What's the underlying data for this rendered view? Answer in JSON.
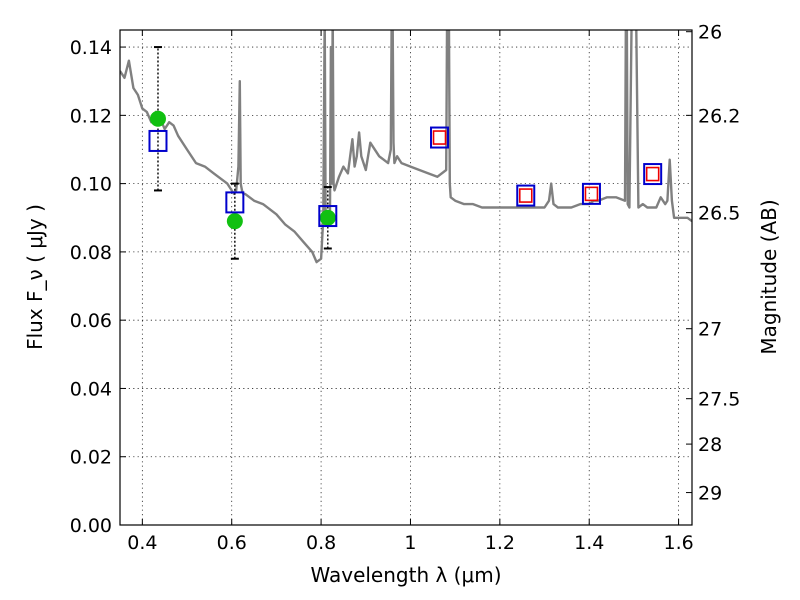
{
  "chart_data": {
    "type": "scatter",
    "title": "",
    "xlabel": "Wavelength  λ (μm)",
    "ylabel": "Flux  F_ν  ( μJy )",
    "y2label": "Magnitude (AB)",
    "xlim": [
      0.35,
      1.63
    ],
    "ylim": [
      0.0,
      0.145
    ],
    "grid": true,
    "legend": "none",
    "x_ticks": [
      {
        "value": 0.4,
        "label": "0.4"
      },
      {
        "value": 0.6,
        "label": "0.6"
      },
      {
        "value": 0.8,
        "label": "0.8"
      },
      {
        "value": 1.0,
        "label": "1"
      },
      {
        "value": 1.2,
        "label": "1.2"
      },
      {
        "value": 1.4,
        "label": "1.4"
      },
      {
        "value": 1.6,
        "label": "1.6"
      }
    ],
    "y_ticks": [
      {
        "value": 0.0,
        "label": "0.00"
      },
      {
        "value": 0.02,
        "label": "0.02"
      },
      {
        "value": 0.04,
        "label": "0.04"
      },
      {
        "value": 0.06,
        "label": "0.06"
      },
      {
        "value": 0.08,
        "label": "0.08"
      },
      {
        "value": 0.1,
        "label": "0.10"
      },
      {
        "value": 0.12,
        "label": "0.12"
      },
      {
        "value": 0.14,
        "label": "0.14"
      }
    ],
    "y2_ticks": [
      {
        "flux": 0.1445,
        "label": "26"
      },
      {
        "flux": 0.12,
        "label": "26.2"
      },
      {
        "flux": 0.0915,
        "label": "26.5"
      },
      {
        "flux": 0.0575,
        "label": "27"
      },
      {
        "flux": 0.037,
        "label": "27.5"
      },
      {
        "flux": 0.0237,
        "label": "28"
      },
      {
        "flux": 0.0095,
        "label": "29"
      }
    ],
    "series": [
      {
        "name": "model spectrum",
        "kind": "line",
        "color": "#808080",
        "x": [
          0.35,
          0.36,
          0.37,
          0.38,
          0.39,
          0.4,
          0.41,
          0.42,
          0.43,
          0.44,
          0.45,
          0.46,
          0.47,
          0.48,
          0.5,
          0.52,
          0.54,
          0.56,
          0.58,
          0.59,
          0.6,
          0.605,
          0.61,
          0.615,
          0.618,
          0.62,
          0.623,
          0.626,
          0.63,
          0.65,
          0.67,
          0.7,
          0.72,
          0.74,
          0.76,
          0.78,
          0.79,
          0.8,
          0.805,
          0.808,
          0.81,
          0.815,
          0.82,
          0.822,
          0.824,
          0.826,
          0.828,
          0.83,
          0.84,
          0.85,
          0.86,
          0.87,
          0.875,
          0.88,
          0.885,
          0.89,
          0.9,
          0.91,
          0.93,
          0.95,
          0.956,
          0.958,
          0.96,
          0.962,
          0.964,
          0.97,
          0.98,
          1.0,
          1.02,
          1.04,
          1.06,
          1.08,
          1.082,
          1.084,
          1.086,
          1.088,
          1.09,
          1.1,
          1.12,
          1.14,
          1.16,
          1.18,
          1.2,
          1.22,
          1.24,
          1.26,
          1.28,
          1.3,
          1.31,
          1.315,
          1.32,
          1.33,
          1.36,
          1.38,
          1.39,
          1.4,
          1.41,
          1.42,
          1.44,
          1.46,
          1.48,
          1.482,
          1.484,
          1.486,
          1.49,
          1.495,
          1.5,
          1.505,
          1.51,
          1.52,
          1.53,
          1.55,
          1.56,
          1.57,
          1.575,
          1.58,
          1.585,
          1.59,
          1.6,
          1.62,
          1.63
        ],
        "y": [
          0.133,
          0.131,
          0.136,
          0.128,
          0.126,
          0.122,
          0.121,
          0.118,
          0.121,
          0.119,
          0.116,
          0.118,
          0.117,
          0.114,
          0.11,
          0.106,
          0.105,
          0.103,
          0.101,
          0.1,
          0.098,
          0.097,
          0.098,
          0.105,
          0.13,
          0.1,
          0.098,
          0.097,
          0.097,
          0.095,
          0.094,
          0.091,
          0.088,
          0.086,
          0.083,
          0.08,
          0.077,
          0.078,
          0.09,
          0.15,
          0.09,
          0.088,
          0.092,
          0.14,
          0.1,
          0.15,
          0.1,
          0.098,
          0.102,
          0.105,
          0.103,
          0.113,
          0.105,
          0.108,
          0.115,
          0.108,
          0.104,
          0.112,
          0.108,
          0.106,
          0.11,
          0.15,
          0.15,
          0.112,
          0.106,
          0.108,
          0.106,
          0.105,
          0.104,
          0.103,
          0.102,
          0.104,
          0.15,
          0.15,
          0.15,
          0.1,
          0.096,
          0.095,
          0.094,
          0.094,
          0.093,
          0.093,
          0.093,
          0.093,
          0.093,
          0.093,
          0.093,
          0.093,
          0.095,
          0.1,
          0.094,
          0.093,
          0.093,
          0.094,
          0.094,
          0.094,
          0.095,
          0.095,
          0.096,
          0.096,
          0.095,
          0.15,
          0.15,
          0.094,
          0.093,
          0.15,
          0.15,
          0.15,
          0.093,
          0.094,
          0.093,
          0.093,
          0.096,
          0.094,
          0.095,
          0.107,
          0.095,
          0.09,
          0.09,
          0.09,
          0.089
        ]
      },
      {
        "name": "observed flux",
        "kind": "errorbar",
        "color": "#000000",
        "x": [
          0.435,
          0.607,
          0.815
        ],
        "y": [
          0.119,
          0.089,
          0.09
        ],
        "yerr_low": [
          0.098,
          0.078,
          0.081
        ],
        "yerr_high": [
          0.14,
          0.1,
          0.099
        ]
      },
      {
        "name": "observed points",
        "kind": "circle",
        "color": "#11c011",
        "x": [
          0.435,
          0.607,
          0.815
        ],
        "y": [
          0.119,
          0.089,
          0.09
        ]
      },
      {
        "name": "model bandpass flux",
        "kind": "square-large",
        "color": "#0000cc",
        "x": [
          0.435,
          0.607,
          0.815,
          1.065,
          1.258,
          1.405,
          1.542
        ],
        "y": [
          0.1125,
          0.0945,
          0.0905,
          0.1135,
          0.0965,
          0.097,
          0.1028
        ]
      },
      {
        "name": "predicted flux",
        "kind": "square-small",
        "color": "#ee0000",
        "x": [
          1.065,
          1.258,
          1.405,
          1.542
        ],
        "y": [
          0.1135,
          0.0965,
          0.097,
          0.1028
        ]
      }
    ]
  }
}
